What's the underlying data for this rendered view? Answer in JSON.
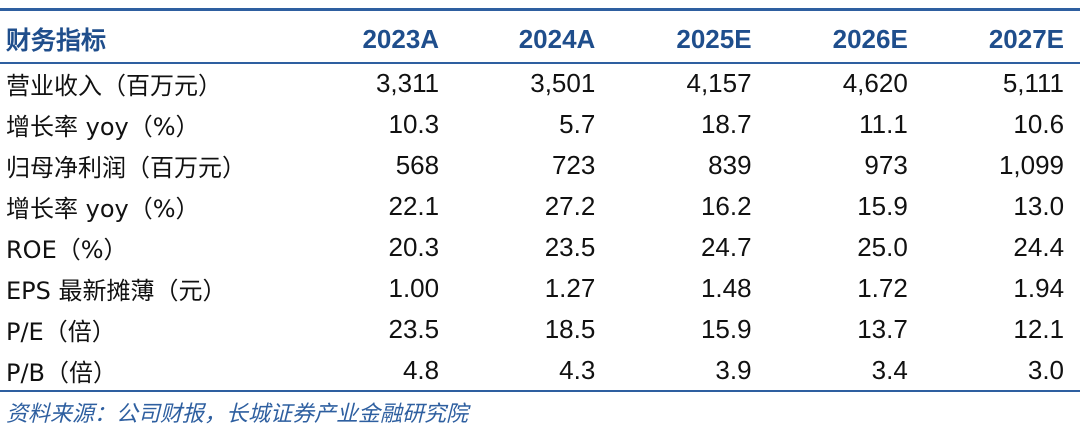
{
  "table": {
    "header": {
      "label": "财务指标",
      "years": [
        "2023A",
        "2024A",
        "2025E",
        "2026E",
        "2027E"
      ]
    },
    "rows": [
      {
        "label": "营业收入（百万元）",
        "values": [
          "3,311",
          "3,501",
          "4,157",
          "4,620",
          "5,111"
        ]
      },
      {
        "label": "增长率 yoy（%）",
        "values": [
          "10.3",
          "5.7",
          "18.7",
          "11.1",
          "10.6"
        ]
      },
      {
        "label": "归母净利润（百万元）",
        "values": [
          "568",
          "723",
          "839",
          "973",
          "1,099"
        ]
      },
      {
        "label": "增长率 yoy（%）",
        "values": [
          "22.1",
          "27.2",
          "16.2",
          "15.9",
          "13.0"
        ]
      },
      {
        "label": "ROE（%）",
        "values": [
          "20.3",
          "23.5",
          "24.7",
          "25.0",
          "24.4"
        ]
      },
      {
        "label": "EPS 最新摊薄（元）",
        "values": [
          "1.00",
          "1.27",
          "1.48",
          "1.72",
          "1.94"
        ]
      },
      {
        "label": "P/E（倍）",
        "values": [
          "23.5",
          "18.5",
          "15.9",
          "13.7",
          "12.1"
        ]
      },
      {
        "label": "P/B（倍）",
        "values": [
          "4.8",
          "4.3",
          "3.9",
          "3.4",
          "3.0"
        ]
      }
    ]
  },
  "source": "资料来源：公司财报，长城证券产业金融研究院",
  "colors": {
    "accent": "#2e5fa0",
    "header_text": "#1f4e8c",
    "body_text": "#111111"
  }
}
